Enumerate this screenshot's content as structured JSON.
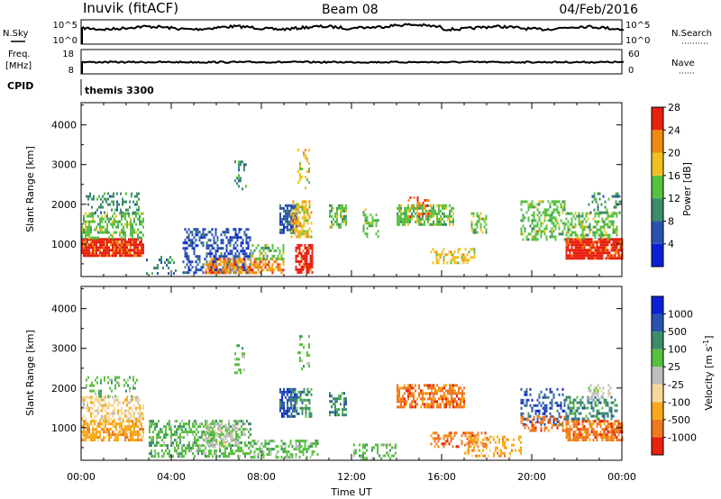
{
  "header": {
    "station": "Inuvik (fitACF)",
    "beam": "Beam 08",
    "date": "04/Feb/2016"
  },
  "top_panels": {
    "nsky_label": "N.Sky",
    "nsearch_label": "N.Search",
    "freq_label_1": "Freq.",
    "freq_label_2": "[MHz]",
    "nave_label": "Nave",
    "cpid_label": "CPID",
    "cpid_text": "themis 3300",
    "nsky_ticks": [
      "10^5",
      "10^0"
    ],
    "nsearch_ticks": [
      "10^5",
      "10^0"
    ],
    "freq_ticks": [
      "18",
      "8"
    ],
    "nave_ticks": [
      "60",
      "0"
    ]
  },
  "chart_data": [
    {
      "type": "heatmap",
      "name": "power",
      "ylabel": "Slant Range [km]",
      "colorbar_label": "Power [dB]",
      "yticks": [
        1000,
        2000,
        3000,
        4000
      ],
      "ylim": [
        180,
        4560
      ],
      "xlim_hours": [
        0,
        24
      ],
      "colorbar_ticks": [
        "4",
        "8",
        "12",
        "16",
        "20",
        "24",
        "28"
      ],
      "colors": [
        "#0a20d8",
        "#2a52b0",
        "#3c8c6a",
        "#58c040",
        "#f0c020",
        "#f08a10",
        "#e82010"
      ],
      "regions": [
        {
          "t": [
            0.0,
            2.8
          ],
          "r": [
            700,
            1150
          ],
          "c": 6,
          "d": 0.9
        },
        {
          "t": [
            0.0,
            2.8
          ],
          "r": [
            1150,
            1800
          ],
          "c": 3,
          "d": 0.55
        },
        {
          "t": [
            0.2,
            2.6
          ],
          "r": [
            1800,
            2300
          ],
          "c": 2,
          "d": 0.35
        },
        {
          "t": [
            2.8,
            4.2
          ],
          "r": [
            250,
            700
          ],
          "c": 2,
          "d": 0.2
        },
        {
          "t": [
            4.5,
            7.5
          ],
          "r": [
            300,
            1400
          ],
          "c": 1,
          "d": 0.5
        },
        {
          "t": [
            5.5,
            9.0
          ],
          "r": [
            280,
            650
          ],
          "c": 5,
          "d": 0.65
        },
        {
          "t": [
            7.5,
            9.0
          ],
          "r": [
            650,
            1000
          ],
          "c": 3,
          "d": 0.45
        },
        {
          "t": [
            6.8,
            7.3
          ],
          "r": [
            2400,
            3100
          ],
          "c": 2,
          "d": 0.3
        },
        {
          "t": [
            8.8,
            9.6
          ],
          "r": [
            1300,
            2000
          ],
          "c": 1,
          "d": 0.7
        },
        {
          "t": [
            9.3,
            10.2
          ],
          "r": [
            1200,
            2100
          ],
          "c": 4,
          "d": 0.55
        },
        {
          "t": [
            9.5,
            10.3
          ],
          "r": [
            300,
            1000
          ],
          "c": 6,
          "d": 0.7
        },
        {
          "t": [
            9.6,
            10.1
          ],
          "r": [
            2400,
            3400
          ],
          "c": 4,
          "d": 0.25
        },
        {
          "t": [
            11.0,
            11.8
          ],
          "r": [
            1400,
            2000
          ],
          "c": 3,
          "d": 0.6
        },
        {
          "t": [
            12.5,
            13.2
          ],
          "r": [
            1200,
            1900
          ],
          "c": 3,
          "d": 0.4
        },
        {
          "t": [
            14.0,
            16.5
          ],
          "r": [
            1500,
            2000
          ],
          "c": 3,
          "d": 0.65
        },
        {
          "t": [
            14.5,
            15.5
          ],
          "r": [
            1700,
            2200
          ],
          "c": 5,
          "d": 0.35
        },
        {
          "t": [
            15.5,
            17.5
          ],
          "r": [
            500,
            900
          ],
          "c": 4,
          "d": 0.4
        },
        {
          "t": [
            17.3,
            18.0
          ],
          "r": [
            1300,
            1800
          ],
          "c": 3,
          "d": 0.45
        },
        {
          "t": [
            19.5,
            21.5
          ],
          "r": [
            1100,
            2100
          ],
          "c": 3,
          "d": 0.45
        },
        {
          "t": [
            21.5,
            24.0
          ],
          "r": [
            650,
            1150
          ],
          "c": 6,
          "d": 0.9
        },
        {
          "t": [
            21.5,
            23.8
          ],
          "r": [
            1150,
            1800
          ],
          "c": 3,
          "d": 0.5
        },
        {
          "t": [
            22.5,
            24.0
          ],
          "r": [
            1800,
            2300
          ],
          "c": 2,
          "d": 0.25
        }
      ]
    },
    {
      "type": "heatmap",
      "name": "velocity",
      "ylabel": "Slant Range [km]",
      "colorbar_label": "Velocity [m s",
      "colorbar_label_sup": "-1",
      "colorbar_label_end": "]",
      "xlabel": "Time UT",
      "yticks": [
        1000,
        2000,
        3000,
        4000
      ],
      "ylim": [
        180,
        4560
      ],
      "xlim_hours": [
        0,
        24
      ],
      "xticks": [
        "00:00",
        "04:00",
        "08:00",
        "12:00",
        "16:00",
        "20:00",
        "00:00"
      ],
      "colorbar_ticks": [
        "-1000",
        "-500",
        "-100",
        "-25",
        "25",
        "100",
        "500",
        "1000"
      ],
      "colors": [
        "#e82010",
        "#f07820",
        "#f8a818",
        "#f8d898",
        "#bebebe",
        "#58c040",
        "#3c8c6a",
        "#2a52b0",
        "#0a20d8"
      ],
      "regions": [
        {
          "t": [
            0.0,
            2.8
          ],
          "r": [
            700,
            1200
          ],
          "c": 2,
          "d": 0.75
        },
        {
          "t": [
            0.0,
            2.8
          ],
          "r": [
            1200,
            1800
          ],
          "c": 3,
          "d": 0.5
        },
        {
          "t": [
            0.2,
            2.5
          ],
          "r": [
            1800,
            2300
          ],
          "c": 5,
          "d": 0.25
        },
        {
          "t": [
            3.0,
            7.5
          ],
          "r": [
            300,
            1200
          ],
          "c": 5,
          "d": 0.55
        },
        {
          "t": [
            5.5,
            7.0
          ],
          "r": [
            500,
            1100
          ],
          "c": 4,
          "d": 0.5
        },
        {
          "t": [
            7.5,
            10.5
          ],
          "r": [
            250,
            700
          ],
          "c": 5,
          "d": 0.5
        },
        {
          "t": [
            8.8,
            9.6
          ],
          "r": [
            1300,
            2000
          ],
          "c": 7,
          "d": 0.6
        },
        {
          "t": [
            9.3,
            10.2
          ],
          "r": [
            1300,
            2000
          ],
          "c": 6,
          "d": 0.45
        },
        {
          "t": [
            9.6,
            10.1
          ],
          "r": [
            2400,
            3400
          ],
          "c": 5,
          "d": 0.2
        },
        {
          "t": [
            6.8,
            7.3
          ],
          "r": [
            2400,
            3100
          ],
          "c": 5,
          "d": 0.25
        },
        {
          "t": [
            11.0,
            11.8
          ],
          "r": [
            1300,
            1900
          ],
          "c": 6,
          "d": 0.5
        },
        {
          "t": [
            12.0,
            14.0
          ],
          "r": [
            200,
            600
          ],
          "c": 5,
          "d": 0.3
        },
        {
          "t": [
            14.0,
            17.0
          ],
          "r": [
            1500,
            2100
          ],
          "c": 1,
          "d": 0.65
        },
        {
          "t": [
            15.5,
            18.0
          ],
          "r": [
            500,
            900
          ],
          "c": 1,
          "d": 0.45
        },
        {
          "t": [
            17.0,
            19.5
          ],
          "r": [
            300,
            800
          ],
          "c": 2,
          "d": 0.3
        },
        {
          "t": [
            19.5,
            21.5
          ],
          "r": [
            1100,
            2000
          ],
          "c": 7,
          "d": 0.35
        },
        {
          "t": [
            19.5,
            21.5
          ],
          "r": [
            900,
            1300
          ],
          "c": 1,
          "d": 0.4
        },
        {
          "t": [
            21.5,
            24.0
          ],
          "r": [
            700,
            1200
          ],
          "c": 1,
          "d": 0.7
        },
        {
          "t": [
            21.5,
            23.8
          ],
          "r": [
            1200,
            1800
          ],
          "c": 6,
          "d": 0.45
        },
        {
          "t": [
            22.5,
            23.5
          ],
          "r": [
            1700,
            2100
          ],
          "c": 4,
          "d": 0.4
        }
      ]
    }
  ]
}
